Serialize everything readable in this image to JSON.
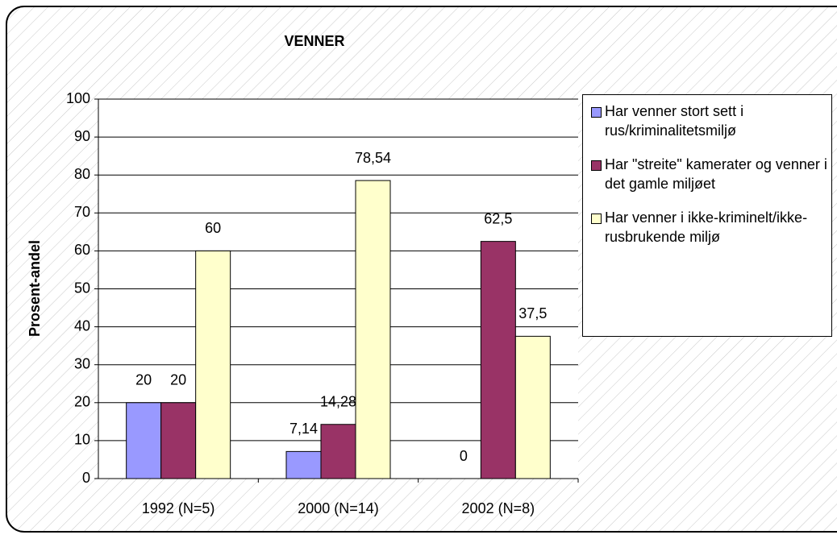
{
  "chart_data": {
    "type": "bar",
    "title": "VENNER",
    "y_label": "Prosent-andel",
    "categories": [
      "1992 (N=5)",
      "2000 (N=14)",
      "2002 (N=8)"
    ],
    "series": [
      {
        "name": "Har venner stort sett i rus/kriminalitetsmiljø",
        "color": "#9999ff",
        "values": [
          20,
          7.14,
          0
        ],
        "value_labels": [
          "20",
          "7,14",
          "0"
        ]
      },
      {
        "name": "Har \"streite\" kamerater og venner i det gamle miljøet",
        "color": "#993366",
        "values": [
          20,
          14.28,
          62.5
        ],
        "value_labels": [
          "20",
          "14,28",
          "62,5"
        ]
      },
      {
        "name": "Har venner i ikke-kriminelt/ikke-rusbrukende miljø",
        "color": "#ffffcc",
        "values": [
          60,
          78.54,
          37.5
        ],
        "value_labels": [
          "60",
          "78,54",
          "37,5"
        ]
      }
    ],
    "ylim": [
      0,
      100
    ],
    "yticks": [
      0,
      10,
      20,
      30,
      40,
      50,
      60,
      70,
      80,
      90,
      100
    ],
    "grid": true
  }
}
